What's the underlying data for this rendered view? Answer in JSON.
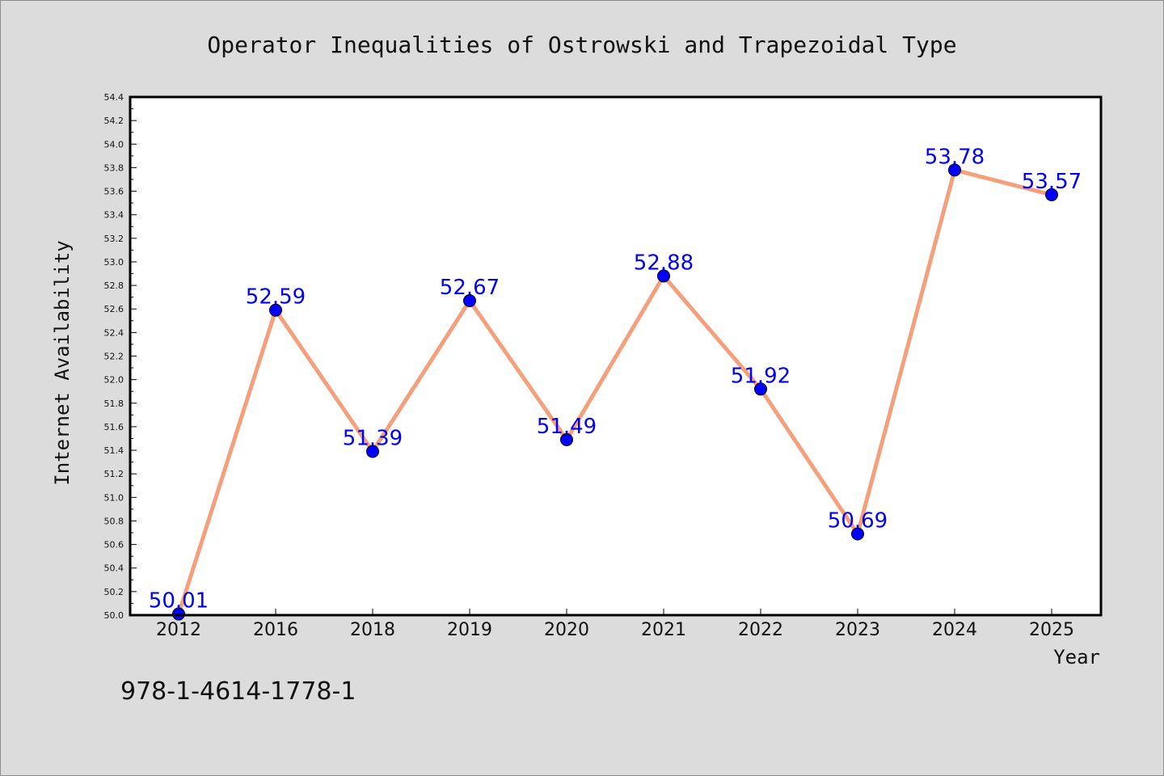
{
  "chart_data": {
    "type": "line",
    "title": "Operator Inequalities of Ostrowski and Trapezoidal Type",
    "xlabel": "Year",
    "ylabel": "Internet Availability",
    "categories": [
      "2012",
      "2016",
      "2018",
      "2019",
      "2020",
      "2021",
      "2022",
      "2023",
      "2024",
      "2025"
    ],
    "series": [
      {
        "values": [
          50.01,
          52.59,
          51.39,
          52.67,
          51.49,
          52.88,
          51.92,
          50.69,
          53.78,
          53.57
        ],
        "data_labels": [
          "50.01",
          "52.59",
          "51.39",
          "52.67",
          "51.49",
          "52.88",
          "51.92",
          "50.69",
          "53.78",
          "53.57"
        ]
      }
    ],
    "ylim": [
      50.0,
      54.4
    ],
    "yticks": [
      "50.0",
      "50.2",
      "50.4",
      "50.6",
      "50.8",
      "51.0",
      "51.2",
      "51.4",
      "51.6",
      "51.8",
      "52.0",
      "52.2",
      "52.4",
      "52.6",
      "52.8",
      "53.0",
      "53.2",
      "53.4",
      "53.6",
      "53.8",
      "54.0",
      "54.2",
      "54.4"
    ],
    "grid": false,
    "colors": {
      "line": "#f4a07c",
      "marker": "#0000ff",
      "label": "#0000ff",
      "axes": "#000000",
      "plot_bg": "#ffffff",
      "figure_bg": "#dcdcdc"
    }
  },
  "footnote": "978-1-4614-1778-1"
}
